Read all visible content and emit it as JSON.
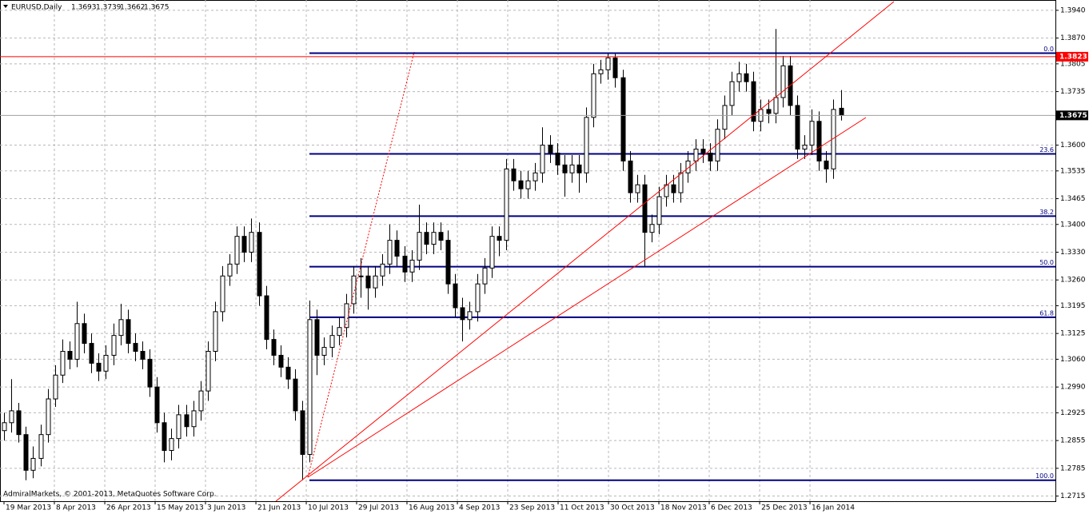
{
  "chart_data": {
    "type": "candlestick",
    "title": "EURUSD,Daily",
    "credit": "AdmiralMarkets, © 2001-2013, MetaQuotes Software Corp.",
    "candle_color": "#000000",
    "up_fill": "#ffffff",
    "down_fill": "#000000",
    "grid": true,
    "ohlc": [
      [
        1.288,
        1.2925,
        1.2855,
        1.29
      ],
      [
        1.29,
        1.301,
        1.2875,
        1.293
      ],
      [
        1.293,
        1.295,
        1.285,
        1.287
      ],
      [
        1.287,
        1.289,
        1.2755,
        1.278
      ],
      [
        1.278,
        1.284,
        1.276,
        1.281
      ],
      [
        1.281,
        1.2895,
        1.279,
        1.287
      ],
      [
        1.287,
        1.2985,
        1.285,
        1.296
      ],
      [
        1.296,
        1.3045,
        1.294,
        1.302
      ],
      [
        1.302,
        1.311,
        1.3,
        1.308
      ],
      [
        1.308,
        1.3105,
        1.3035,
        1.306
      ],
      [
        1.306,
        1.3205,
        1.304,
        1.315
      ],
      [
        1.315,
        1.3175,
        1.3075,
        1.31
      ],
      [
        1.31,
        1.3125,
        1.3025,
        1.305
      ],
      [
        1.305,
        1.3075,
        1.3005,
        1.303
      ],
      [
        1.303,
        1.3095,
        1.301,
        1.307
      ],
      [
        1.307,
        1.315,
        1.3045,
        1.312
      ],
      [
        1.312,
        1.32,
        1.3095,
        1.316
      ],
      [
        1.316,
        1.3185,
        1.3075,
        1.31
      ],
      [
        1.31,
        1.3125,
        1.3055,
        1.308
      ],
      [
        1.308,
        1.3105,
        1.3035,
        1.306
      ],
      [
        1.306,
        1.3085,
        1.2965,
        1.299
      ],
      [
        1.299,
        1.3015,
        1.2875,
        1.29
      ],
      [
        1.29,
        1.2925,
        1.28,
        1.283
      ],
      [
        1.283,
        1.2885,
        1.2805,
        1.286
      ],
      [
        1.286,
        1.2945,
        1.2835,
        1.292
      ],
      [
        1.292,
        1.2945,
        1.2865,
        1.289
      ],
      [
        1.289,
        1.2955,
        1.2865,
        1.293
      ],
      [
        1.293,
        1.3005,
        1.2905,
        1.298
      ],
      [
        1.298,
        1.3105,
        1.2955,
        1.308
      ],
      [
        1.308,
        1.3205,
        1.3055,
        1.318
      ],
      [
        1.318,
        1.3295,
        1.3155,
        1.327
      ],
      [
        1.327,
        1.3325,
        1.3245,
        1.33
      ],
      [
        1.33,
        1.3395,
        1.3275,
        1.337
      ],
      [
        1.337,
        1.3395,
        1.3305,
        1.333
      ],
      [
        1.333,
        1.3415,
        1.3305,
        1.338
      ],
      [
        1.338,
        1.3405,
        1.3195,
        1.322
      ],
      [
        1.322,
        1.3245,
        1.3085,
        1.311
      ],
      [
        1.311,
        1.3135,
        1.3045,
        1.307
      ],
      [
        1.307,
        1.3095,
        1.3015,
        1.304
      ],
      [
        1.304,
        1.3065,
        1.2985,
        1.301
      ],
      [
        1.301,
        1.3035,
        1.2905,
        1.293
      ],
      [
        1.293,
        1.2955,
        1.2755,
        1.282
      ],
      [
        1.282,
        1.3208,
        1.28,
        1.316
      ],
      [
        1.316,
        1.3185,
        1.302,
        1.307
      ],
      [
        1.307,
        1.3115,
        1.3045,
        1.309
      ],
      [
        1.309,
        1.3145,
        1.3065,
        1.312
      ],
      [
        1.312,
        1.3165,
        1.3095,
        1.314
      ],
      [
        1.314,
        1.3225,
        1.3115,
        1.32
      ],
      [
        1.32,
        1.3295,
        1.3175,
        1.327
      ],
      [
        1.327,
        1.3315,
        1.3215,
        1.327
      ],
      [
        1.327,
        1.3295,
        1.3185,
        1.324
      ],
      [
        1.324,
        1.3295,
        1.3215,
        1.327
      ],
      [
        1.327,
        1.3325,
        1.3245,
        1.33
      ],
      [
        1.33,
        1.34,
        1.3275,
        1.336
      ],
      [
        1.336,
        1.3385,
        1.3295,
        1.332
      ],
      [
        1.332,
        1.3345,
        1.3255,
        1.328
      ],
      [
        1.328,
        1.3335,
        1.3255,
        1.331
      ],
      [
        1.331,
        1.345,
        1.3285,
        1.338
      ],
      [
        1.338,
        1.3405,
        1.3325,
        1.335
      ],
      [
        1.335,
        1.3405,
        1.3325,
        1.338
      ],
      [
        1.338,
        1.3405,
        1.3335,
        1.336
      ],
      [
        1.336,
        1.3385,
        1.3225,
        1.325
      ],
      [
        1.325,
        1.3275,
        1.3165,
        1.319
      ],
      [
        1.319,
        1.3215,
        1.3105,
        1.316
      ],
      [
        1.316,
        1.3205,
        1.3135,
        1.318
      ],
      [
        1.318,
        1.3275,
        1.3155,
        1.325
      ],
      [
        1.325,
        1.3315,
        1.3225,
        1.329
      ],
      [
        1.329,
        1.3395,
        1.3265,
        1.337
      ],
      [
        1.337,
        1.3395,
        1.332,
        1.336
      ],
      [
        1.336,
        1.3565,
        1.3335,
        1.354
      ],
      [
        1.354,
        1.3565,
        1.3485,
        1.351
      ],
      [
        1.351,
        1.3535,
        1.3465,
        1.349
      ],
      [
        1.349,
        1.3535,
        1.3465,
        1.351
      ],
      [
        1.351,
        1.3555,
        1.3485,
        1.353
      ],
      [
        1.353,
        1.3645,
        1.3505,
        1.36
      ],
      [
        1.36,
        1.3625,
        1.3555,
        1.358
      ],
      [
        1.358,
        1.3605,
        1.3525,
        1.355
      ],
      [
        1.355,
        1.3575,
        1.347,
        1.353
      ],
      [
        1.353,
        1.3575,
        1.3505,
        1.355
      ],
      [
        1.355,
        1.3575,
        1.348,
        1.353
      ],
      [
        1.353,
        1.3695,
        1.3505,
        1.367
      ],
      [
        1.367,
        1.3805,
        1.3645,
        1.378
      ],
      [
        1.378,
        1.3815,
        1.3755,
        1.379
      ],
      [
        1.379,
        1.3832,
        1.3765,
        1.382
      ],
      [
        1.382,
        1.383,
        1.3745,
        1.377
      ],
      [
        1.377,
        1.379,
        1.3535,
        1.356
      ],
      [
        1.356,
        1.3585,
        1.3455,
        1.348
      ],
      [
        1.348,
        1.3525,
        1.3455,
        1.35
      ],
      [
        1.35,
        1.3525,
        1.3295,
        1.338
      ],
      [
        1.338,
        1.3425,
        1.3355,
        1.34
      ],
      [
        1.34,
        1.3495,
        1.3375,
        1.347
      ],
      [
        1.347,
        1.3525,
        1.3445,
        1.35
      ],
      [
        1.35,
        1.3525,
        1.3455,
        1.348
      ],
      [
        1.348,
        1.3555,
        1.3455,
        1.353
      ],
      [
        1.353,
        1.3585,
        1.3505,
        1.356
      ],
      [
        1.356,
        1.3615,
        1.3535,
        1.359
      ],
      [
        1.359,
        1.3615,
        1.3555,
        1.358
      ],
      [
        1.358,
        1.3605,
        1.3535,
        1.356
      ],
      [
        1.356,
        1.3665,
        1.3535,
        1.364
      ],
      [
        1.364,
        1.3725,
        1.3615,
        1.37
      ],
      [
        1.37,
        1.3785,
        1.3675,
        1.376
      ],
      [
        1.376,
        1.381,
        1.3735,
        1.378
      ],
      [
        1.378,
        1.3805,
        1.3735,
        1.376
      ],
      [
        1.376,
        1.3785,
        1.3635,
        1.366
      ],
      [
        1.366,
        1.3715,
        1.3635,
        1.369
      ],
      [
        1.369,
        1.3715,
        1.3655,
        1.368
      ],
      [
        1.368,
        1.3893,
        1.3655,
        1.372
      ],
      [
        1.372,
        1.3825,
        1.3695,
        1.38
      ],
      [
        1.38,
        1.3825,
        1.3675,
        1.37
      ],
      [
        1.37,
        1.3725,
        1.3565,
        1.359
      ],
      [
        1.359,
        1.3625,
        1.3565,
        1.36
      ],
      [
        1.36,
        1.369,
        1.3575,
        1.366
      ],
      [
        1.366,
        1.3685,
        1.3535,
        1.356
      ],
      [
        1.356,
        1.3585,
        1.3505,
        1.354
      ],
      [
        1.354,
        1.3715,
        1.3515,
        1.369
      ],
      [
        1.3693,
        1.3739,
        1.3662,
        1.3675
      ]
    ],
    "xlim": [
      -0.55,
      144.5
    ],
    "xticks": [
      {
        "value": 0,
        "label": "19 Mar 2013"
      },
      {
        "value": 6.92,
        "label": "8 Apr 2013"
      },
      {
        "value": 13.85,
        "label": "26 Apr 2013"
      },
      {
        "value": 20.77,
        "label": "15 May 2013"
      },
      {
        "value": 27.69,
        "label": "3 Jun 2013"
      },
      {
        "value": 34.62,
        "label": "21 Jun 2013"
      },
      {
        "value": 41.54,
        "label": "10 Jul 2013"
      },
      {
        "value": 48.46,
        "label": "29 Jul 2013"
      },
      {
        "value": 55.38,
        "label": "16 Aug 2013"
      },
      {
        "value": 62.31,
        "label": "4 Sep 2013"
      },
      {
        "value": 69.23,
        "label": "23 Sep 2013"
      },
      {
        "value": 76.15,
        "label": "11 Oct 2013"
      },
      {
        "value": 83.08,
        "label": "30 Oct 2013"
      },
      {
        "value": 90,
        "label": "18 Nov 2013"
      },
      {
        "value": 96.92,
        "label": "6 Dec 2013"
      },
      {
        "value": 103.85,
        "label": "25 Dec 2013"
      },
      {
        "value": 110.77,
        "label": "16 Jan 2014"
      }
    ],
    "ylim": [
      1.2702,
      1.3966
    ],
    "yticks": [
      {
        "value": 1.394,
        "label": "1.3940"
      },
      {
        "value": 1.387,
        "label": "1.3870"
      },
      1.3805,
      1.3735,
      {
        "value": 1.36,
        "label": "1.3600"
      },
      1.3535,
      1.3465,
      {
        "value": 1.34,
        "label": "1.3400"
      },
      {
        "value": 1.333,
        "label": "1.3330"
      },
      {
        "value": 1.326,
        "label": "1.3260"
      },
      1.3195,
      1.3125,
      {
        "value": 1.306,
        "label": "1.3060"
      },
      {
        "value": 1.299,
        "label": "1.2990"
      },
      1.2925,
      1.2855,
      1.2785,
      1.2715
    ],
    "price_lines": [
      {
        "value": 1.3823,
        "color": "#ff0000",
        "label_fill": "#ff0000"
      },
      {
        "value": 1.3675,
        "color": "#a0a0a0",
        "label_fill": "#000000"
      }
    ],
    "fib_color": "#000080",
    "fib_levels": [
      {
        "label": "0.0",
        "price": 1.3832
      },
      {
        "label": "23.6",
        "price": 1.3578
      },
      {
        "label": "38.2",
        "price": 1.3421
      },
      {
        "label": "50.0",
        "price": 1.32935
      },
      {
        "label": "61.8",
        "price": 1.3166
      },
      {
        "label": "100.0",
        "price": 1.2755
      }
    ]
  }
}
